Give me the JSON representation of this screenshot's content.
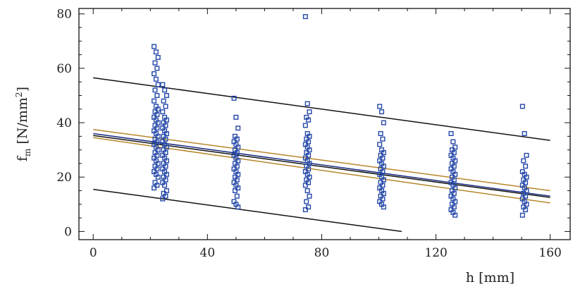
{
  "chart_data": {
    "type": "scatter",
    "title": "",
    "xlabel": "h [mm]",
    "ylabel_main": "f",
    "ylabel_sub": "m",
    "ylabel_rest": " [N/mm",
    "ylabel_sup": "2",
    "ylabel_end": "]",
    "xlim": [
      -5,
      167
    ],
    "ylim": [
      -3,
      82
    ],
    "xticks": [
      0,
      40,
      80,
      120,
      160
    ],
    "yticks": [
      0,
      20,
      40,
      60,
      80
    ],
    "grid": false,
    "series": [
      {
        "marker": "square-open",
        "color": "#2347a8",
        "groups": [
          {
            "x": 22,
            "y": [
              68,
              66,
              64,
              62,
              60,
              58,
              56,
              54,
              52,
              50,
              48,
              46,
              45,
              44,
              43,
              42,
              41,
              40,
              39,
              38,
              37,
              36,
              35,
              34,
              33,
              32,
              31,
              30,
              29,
              28,
              27,
              26,
              25,
              24,
              23,
              22,
              21,
              20,
              18,
              17,
              16
            ]
          },
          {
            "x": 25,
            "y": [
              54,
              52,
              50,
              48,
              46,
              44,
              42,
              41,
              40,
              39,
              38,
              37,
              36,
              35,
              34,
              33,
              32,
              31,
              30,
              29,
              28,
              27,
              26,
              25,
              24,
              23,
              22,
              21,
              20,
              19,
              18,
              17,
              15,
              14,
              13,
              12
            ]
          },
          {
            "x": 50,
            "y": [
              49,
              42,
              38,
              35,
              34,
              33,
              32,
              31,
              30,
              29,
              28,
              27,
              26,
              25,
              24,
              23,
              22,
              21,
              20,
              19,
              18,
              17,
              16,
              15,
              13,
              11,
              10,
              9
            ]
          },
          {
            "x": 75,
            "y": [
              79,
              47,
              44,
              42,
              41,
              39,
              36,
              35,
              34,
              33,
              32,
              31,
              30,
              29,
              28,
              27,
              26,
              25,
              24,
              23,
              22,
              21,
              20,
              19,
              18,
              17,
              15,
              13,
              11,
              9,
              8
            ]
          },
          {
            "x": 101,
            "y": [
              46,
              44,
              40,
              36,
              34,
              32,
              30,
              29,
              28,
              27,
              26,
              25,
              24,
              23,
              22,
              21,
              20,
              19,
              18,
              17,
              16,
              15,
              14,
              13,
              12,
              11,
              10,
              9
            ]
          },
          {
            "x": 126,
            "y": [
              36,
              33,
              31,
              30,
              29,
              28,
              27,
              26,
              25,
              24,
              23,
              22,
              21,
              20,
              19,
              18,
              17,
              16,
              15,
              14,
              13,
              12,
              11,
              10,
              9,
              8,
              7,
              6
            ]
          },
          {
            "x": 151,
            "y": [
              46,
              36,
              28,
              26,
              24,
              22,
              21,
              20,
              19,
              18,
              17,
              16,
              15,
              14,
              13,
              12,
              11,
              10,
              9,
              8,
              6
            ]
          }
        ]
      }
    ],
    "lines": [
      {
        "color": "#111111",
        "x": [
          0,
          160
        ],
        "y": [
          56.5,
          33.5
        ]
      },
      {
        "color": "#111111",
        "x": [
          0,
          108
        ],
        "y": [
          15.5,
          0
        ]
      },
      {
        "color": "#b8862a",
        "x": [
          0,
          160
        ],
        "y": [
          37.5,
          15
        ]
      },
      {
        "color": "#1a2a80",
        "x": [
          0,
          160
        ],
        "y": [
          36,
          13
        ]
      },
      {
        "color": "#111111",
        "x": [
          0,
          160
        ],
        "y": [
          35.3,
          12.5
        ]
      },
      {
        "color": "#b8862a",
        "x": [
          0,
          160
        ],
        "y": [
          34.5,
          10.5
        ]
      }
    ]
  }
}
